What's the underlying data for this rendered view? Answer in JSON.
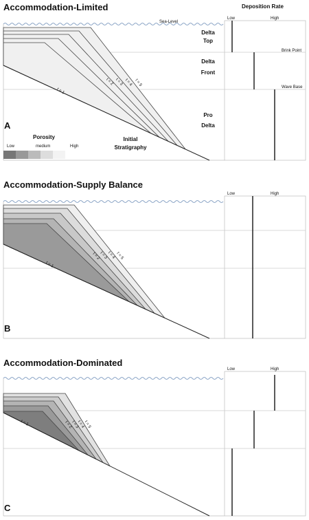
{
  "sea_level": "Sea-Level",
  "deposition_rate": "Deposition Rate",
  "brink_point": "Brink Point",
  "wave_base": "Wave Base",
  "zones": [
    [
      "Delta",
      "Top"
    ],
    [
      "Delta",
      "Front"
    ],
    [
      "Pro",
      "Delta"
    ]
  ],
  "initial_stratigraphy": [
    "Initial",
    "Stratigraphy"
  ],
  "porosity": {
    "title": "Porosity",
    "low": "Low",
    "medium": "medium",
    "high": "High"
  },
  "panels": [
    {
      "title": "Accommodation-Limited",
      "letter": "A",
      "low": "Low",
      "high": "High",
      "layers": [
        "t = 1",
        "t = 2",
        "t = 3",
        "t = 4",
        "t = 5"
      ]
    },
    {
      "title": "Accommodation-Supply Balance",
      "letter": "B",
      "low": "Low",
      "high": "High",
      "layers": [
        "t = 1",
        "t = 2",
        "t = 3",
        "t = 4",
        "t = 5"
      ]
    },
    {
      "title": "Accommodation-Dominated",
      "letter": "C",
      "low": "Low",
      "high": "High",
      "layers": [
        "t = 1",
        "t = 2",
        "t = 3",
        "t = 4",
        "t = 5"
      ]
    }
  ]
}
